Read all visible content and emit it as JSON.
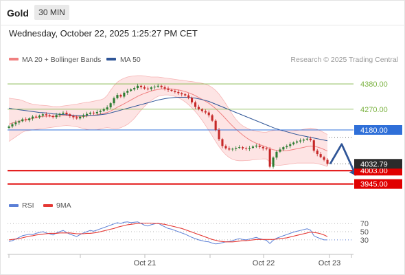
{
  "header": {
    "symbol": "Gold",
    "timeframe": "30 MIN",
    "datetime": "Wednesday, October 22, 2025 1:25:27 PM CET"
  },
  "colors": {
    "bollinger": "#f08080",
    "bollinger_fill": "#fde4e4",
    "ma50": "#2f5597",
    "green_level": "#7cb342",
    "blue_level": "#2f6fd8",
    "red_level": "#e00000",
    "bull_candle": "#2e7d32",
    "bear_candle": "#c62828",
    "arrow": "#2f5597",
    "rsi": "#5b7fd6",
    "rsi_ma": "#e53935"
  },
  "chart_data": [
    {
      "type": "candlestick",
      "legend": [
        {
          "name": "MA 20 + Bollinger Bands",
          "color": "#f08080"
        },
        {
          "name": "MA 50",
          "color": "#2f5597"
        }
      ],
      "legend_position": "top-left",
      "copyright": "Research © 2025 Trading Central",
      "ylim": [
        3920,
        4440
      ],
      "levels": [
        {
          "value": 4380,
          "label": "4380.00",
          "kind": "resistance"
        },
        {
          "value": 4270,
          "label": "4270.00",
          "kind": "resistance"
        },
        {
          "value": 4180,
          "label": "4180.00",
          "kind": "pivot"
        },
        {
          "value": 4003,
          "label": "4003.00",
          "kind": "support"
        },
        {
          "value": 3945,
          "label": "3945.00",
          "kind": "support"
        }
      ],
      "last_price": {
        "value": 4032.79,
        "label": "4032.79"
      },
      "x_tick_labels": [
        "Oct 21",
        "Oct 22",
        "Oct 23"
      ],
      "close_series": [
        4195,
        4205,
        4212,
        4218,
        4226,
        4222,
        4230,
        4238,
        4235,
        4242,
        4248,
        4244,
        4240,
        4236,
        4245,
        4250,
        4255,
        4248,
        4240,
        4235,
        4230,
        4238,
        4244,
        4250,
        4255,
        4252,
        4258,
        4263,
        4270,
        4278,
        4296,
        4318,
        4332,
        4325,
        4342,
        4350,
        4356,
        4362,
        4372,
        4366,
        4360,
        4358,
        4365,
        4368,
        4372,
        4366,
        4360,
        4354,
        4350,
        4345,
        4340,
        4335,
        4330,
        4320,
        4300,
        4280,
        4270,
        4262,
        4256,
        4244,
        4220,
        4180,
        4140,
        4110,
        4100,
        4095,
        4098,
        4102,
        4105,
        4100,
        4098,
        4102,
        4108,
        4112,
        4106,
        4100,
        4096,
        4020,
        4060,
        4085,
        4095,
        4105,
        4110,
        4118,
        4125,
        4130,
        4134,
        4138,
        4142,
        4135,
        4090,
        4075,
        4062,
        4050,
        4032.79
      ],
      "projection": {
        "values": [
          4032.79,
          4118,
          3980
        ],
        "steps": [
          0,
          4,
          9
        ]
      },
      "ma20": [
        4205,
        4210,
        4214,
        4218,
        4222,
        4224,
        4227,
        4230,
        4233,
        4236,
        4239,
        4240,
        4240,
        4239,
        4239,
        4240,
        4242,
        4243,
        4242,
        4240,
        4238,
        4237,
        4238,
        4240,
        4242,
        4244,
        4246,
        4249,
        4252,
        4256,
        4262,
        4270,
        4279,
        4286,
        4294,
        4302,
        4310,
        4318,
        4326,
        4333,
        4339,
        4344,
        4349,
        4353,
        4356,
        4358,
        4359,
        4359,
        4358,
        4356,
        4354,
        4351,
        4347,
        4342,
        4336,
        4329,
        4321,
        4313,
        4305,
        4296,
        4285,
        4273,
        4259,
        4244,
        4228,
        4212,
        4197,
        4183,
        4170,
        4158,
        4147,
        4137,
        4129,
        4122,
        4116,
        4111,
        4106,
        4099,
        4094,
        4091,
        4089,
        4089,
        4090,
        4092,
        4095,
        4098,
        4101,
        4104,
        4108,
        4110,
        4109,
        4106,
        4101,
        4095,
        4088
      ],
      "bb_upper": [
        4318,
        4316,
        4314,
        4312,
        4308,
        4302,
        4296,
        4292,
        4290,
        4288,
        4287,
        4286,
        4284,
        4282,
        4281,
        4282,
        4284,
        4286,
        4288,
        4290,
        4292,
        4295,
        4298,
        4300,
        4302,
        4305,
        4308,
        4311,
        4316,
        4330,
        4352,
        4372,
        4388,
        4398,
        4405,
        4410,
        4413,
        4415,
        4416,
        4416,
        4415,
        4412,
        4410,
        4410,
        4410,
        4408,
        4406,
        4404,
        4402,
        4400,
        4398,
        4396,
        4394,
        4392,
        4390,
        4388,
        4386,
        4383,
        4379,
        4373,
        4364,
        4352,
        4336,
        4316,
        4294,
        4270,
        4246,
        4226,
        4210,
        4198,
        4190,
        4183,
        4178,
        4174,
        4172,
        4170,
        4170,
        4174,
        4178,
        4180,
        4178,
        4176,
        4175,
        4175,
        4176,
        4178,
        4180,
        4183,
        4186,
        4188,
        4186,
        4182,
        4176,
        4168,
        4160
      ],
      "bb_lower": [
        4130,
        4140,
        4150,
        4160,
        4170,
        4176,
        4178,
        4180,
        4182,
        4184,
        4186,
        4188,
        4190,
        4192,
        4194,
        4196,
        4198,
        4199,
        4198,
        4196,
        4194,
        4190,
        4186,
        4182,
        4180,
        4180,
        4181,
        4184,
        4188,
        4190,
        4188,
        4186,
        4186,
        4190,
        4196,
        4204,
        4216,
        4230,
        4248,
        4266,
        4282,
        4296,
        4308,
        4318,
        4326,
        4330,
        4332,
        4332,
        4330,
        4326,
        4320,
        4312,
        4302,
        4290,
        4276,
        4260,
        4242,
        4222,
        4200,
        4178,
        4154,
        4130,
        4108,
        4088,
        4072,
        4060,
        4052,
        4048,
        4046,
        4046,
        4047,
        4048,
        4050,
        4052,
        4053,
        4054,
        4054,
        4040,
        4030,
        4026,
        4026,
        4028,
        4030,
        4032,
        4034,
        4036,
        4036,
        4036,
        4036,
        4036,
        4036,
        4034,
        4030,
        4026,
        4020
      ],
      "ma50": [
        4275,
        4272,
        4270,
        4268,
        4266,
        4264,
        4262,
        4260,
        4258,
        4256,
        4255,
        4254,
        4252,
        4250,
        4249,
        4248,
        4247,
        4246,
        4245,
        4244,
        4243,
        4242,
        4242,
        4242,
        4242,
        4243,
        4244,
        4246,
        4248,
        4250,
        4254,
        4258,
        4262,
        4266,
        4270,
        4274,
        4278,
        4282,
        4286,
        4290,
        4294,
        4298,
        4302,
        4306,
        4310,
        4313,
        4316,
        4318,
        4320,
        4321,
        4322,
        4322,
        4322,
        4321,
        4320,
        4318,
        4315,
        4312,
        4308,
        4304,
        4298,
        4292,
        4286,
        4280,
        4274,
        4268,
        4262,
        4256,
        4250,
        4244,
        4238,
        4232,
        4226,
        4220,
        4214,
        4208,
        4202,
        4196,
        4190,
        4185,
        4180,
        4176,
        4172,
        4168,
        4164,
        4160,
        4157,
        4154,
        4151,
        4148,
        4145,
        4142,
        4139,
        4136,
        4133
      ]
    },
    {
      "type": "line",
      "legend": [
        {
          "name": "RSI",
          "color": "#5b7fd6"
        },
        {
          "name": "9MA",
          "color": "#e53935"
        }
      ],
      "ylim": [
        18,
        82
      ],
      "y_ticks": [
        70,
        50,
        30
      ],
      "series": [
        {
          "name": "RSI",
          "values": [
            26,
            28,
            32,
            36,
            40,
            42,
            44,
            43,
            46,
            48,
            50,
            47,
            45,
            42,
            47,
            50,
            53,
            48,
            44,
            41,
            38,
            43,
            47,
            50,
            53,
            51,
            54,
            57,
            60,
            63,
            66,
            69,
            72,
            70,
            73,
            74,
            72,
            73,
            74,
            70,
            66,
            64,
            67,
            69,
            71,
            66,
            62,
            58,
            56,
            53,
            50,
            47,
            44,
            40,
            36,
            33,
            30,
            28,
            26,
            25,
            22,
            20,
            21,
            23,
            25,
            26,
            28,
            31,
            33,
            31,
            30,
            32,
            34,
            36,
            33,
            31,
            29,
            21,
            29,
            34,
            37,
            40,
            43,
            46,
            49,
            51,
            53,
            55,
            57,
            54,
            40,
            36,
            33,
            30,
            30
          ]
        },
        {
          "name": "9MA",
          "values": [
            30,
            31,
            32,
            33,
            35,
            37,
            39,
            40,
            42,
            43,
            44,
            45,
            46,
            46,
            46,
            47,
            47,
            47,
            47,
            46,
            45,
            45,
            45,
            46,
            46,
            47,
            48,
            50,
            52,
            54,
            56,
            58,
            61,
            63,
            65,
            67,
            68,
            69,
            70,
            71,
            71,
            71,
            71,
            70,
            70,
            69,
            68,
            66,
            64,
            62,
            60,
            58,
            55,
            52,
            49,
            46,
            43,
            40,
            37,
            34,
            31,
            29,
            27,
            26,
            25,
            25,
            25,
            26,
            27,
            28,
            28,
            29,
            30,
            31,
            31,
            31,
            31,
            31,
            31,
            32,
            33,
            34,
            35,
            37,
            39,
            41,
            43,
            45,
            47,
            49,
            48,
            47,
            45,
            42,
            38
          ]
        }
      ]
    }
  ]
}
